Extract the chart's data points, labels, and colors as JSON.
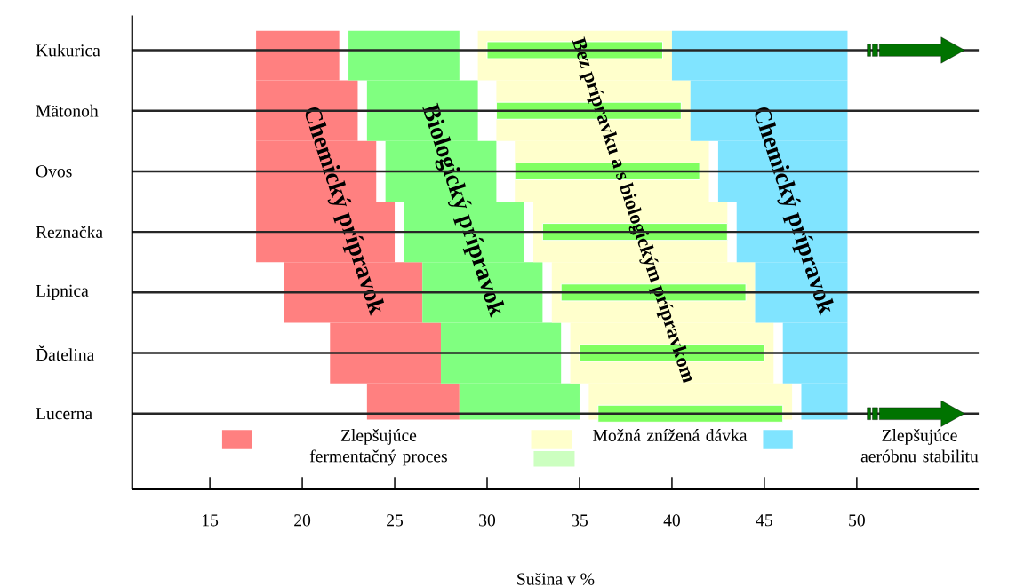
{
  "chart_data": {
    "type": "bar",
    "orientation": "horizontal",
    "xlabel": "Sušina v %",
    "categories": [
      "Kukurica",
      "Mätonoh",
      "Ovos",
      "Reznačka",
      "Lipnica",
      "Ďatelina",
      "Lucerna"
    ],
    "series": [
      {
        "name": "Zlepšujúce fermentačný proces",
        "color": "#ff8080",
        "base": [
          17.5,
          17.5,
          17.5,
          17.5,
          19,
          21.5,
          23.5
        ],
        "values": [
          4.5,
          5.5,
          6.5,
          7.5,
          7.5,
          6,
          5
        ]
      },
      {
        "color": "#80ff80",
        "base": [
          22.5,
          23.5,
          24.5,
          25.5,
          26.5,
          27.5,
          28.5
        ],
        "values": [
          6,
          6,
          6,
          6.5,
          6.5,
          6.5,
          6.5
        ]
      },
      {
        "name": "Možná znížená dávka",
        "color": "#ffffcc",
        "base": [
          29.5,
          30.5,
          31.5,
          32.5,
          33.5,
          34.5,
          35.5
        ],
        "values": [
          10.5,
          10.5,
          10.5,
          10.5,
          11,
          11,
          11
        ]
      },
      {
        "color": "#80ff60",
        "base": [
          30,
          30.5,
          31.5,
          33,
          34,
          35,
          36
        ],
        "values": [
          9.5,
          10,
          10,
          10,
          10,
          10,
          10
        ]
      },
      {
        "name": "Zlepšujúce aeróbnu stabilitu",
        "color": "#80e4ff",
        "base": [
          40,
          41,
          42.5,
          43.5,
          44.5,
          46,
          47
        ],
        "values": [
          9.5,
          8.5,
          7,
          6,
          5,
          3.5,
          2.5
        ]
      }
    ],
    "xlim": [
      10.8,
      56.6
    ],
    "xticks": [
      15,
      20,
      25,
      30,
      35,
      40,
      45,
      50
    ],
    "grid": "y",
    "legend": "bottom",
    "annotations": [
      "Chemický prípravok",
      "Biologický prípravok",
      "Bez prípravku a s biologickým prípravkom",
      "Chemický prípravok"
    ]
  }
}
